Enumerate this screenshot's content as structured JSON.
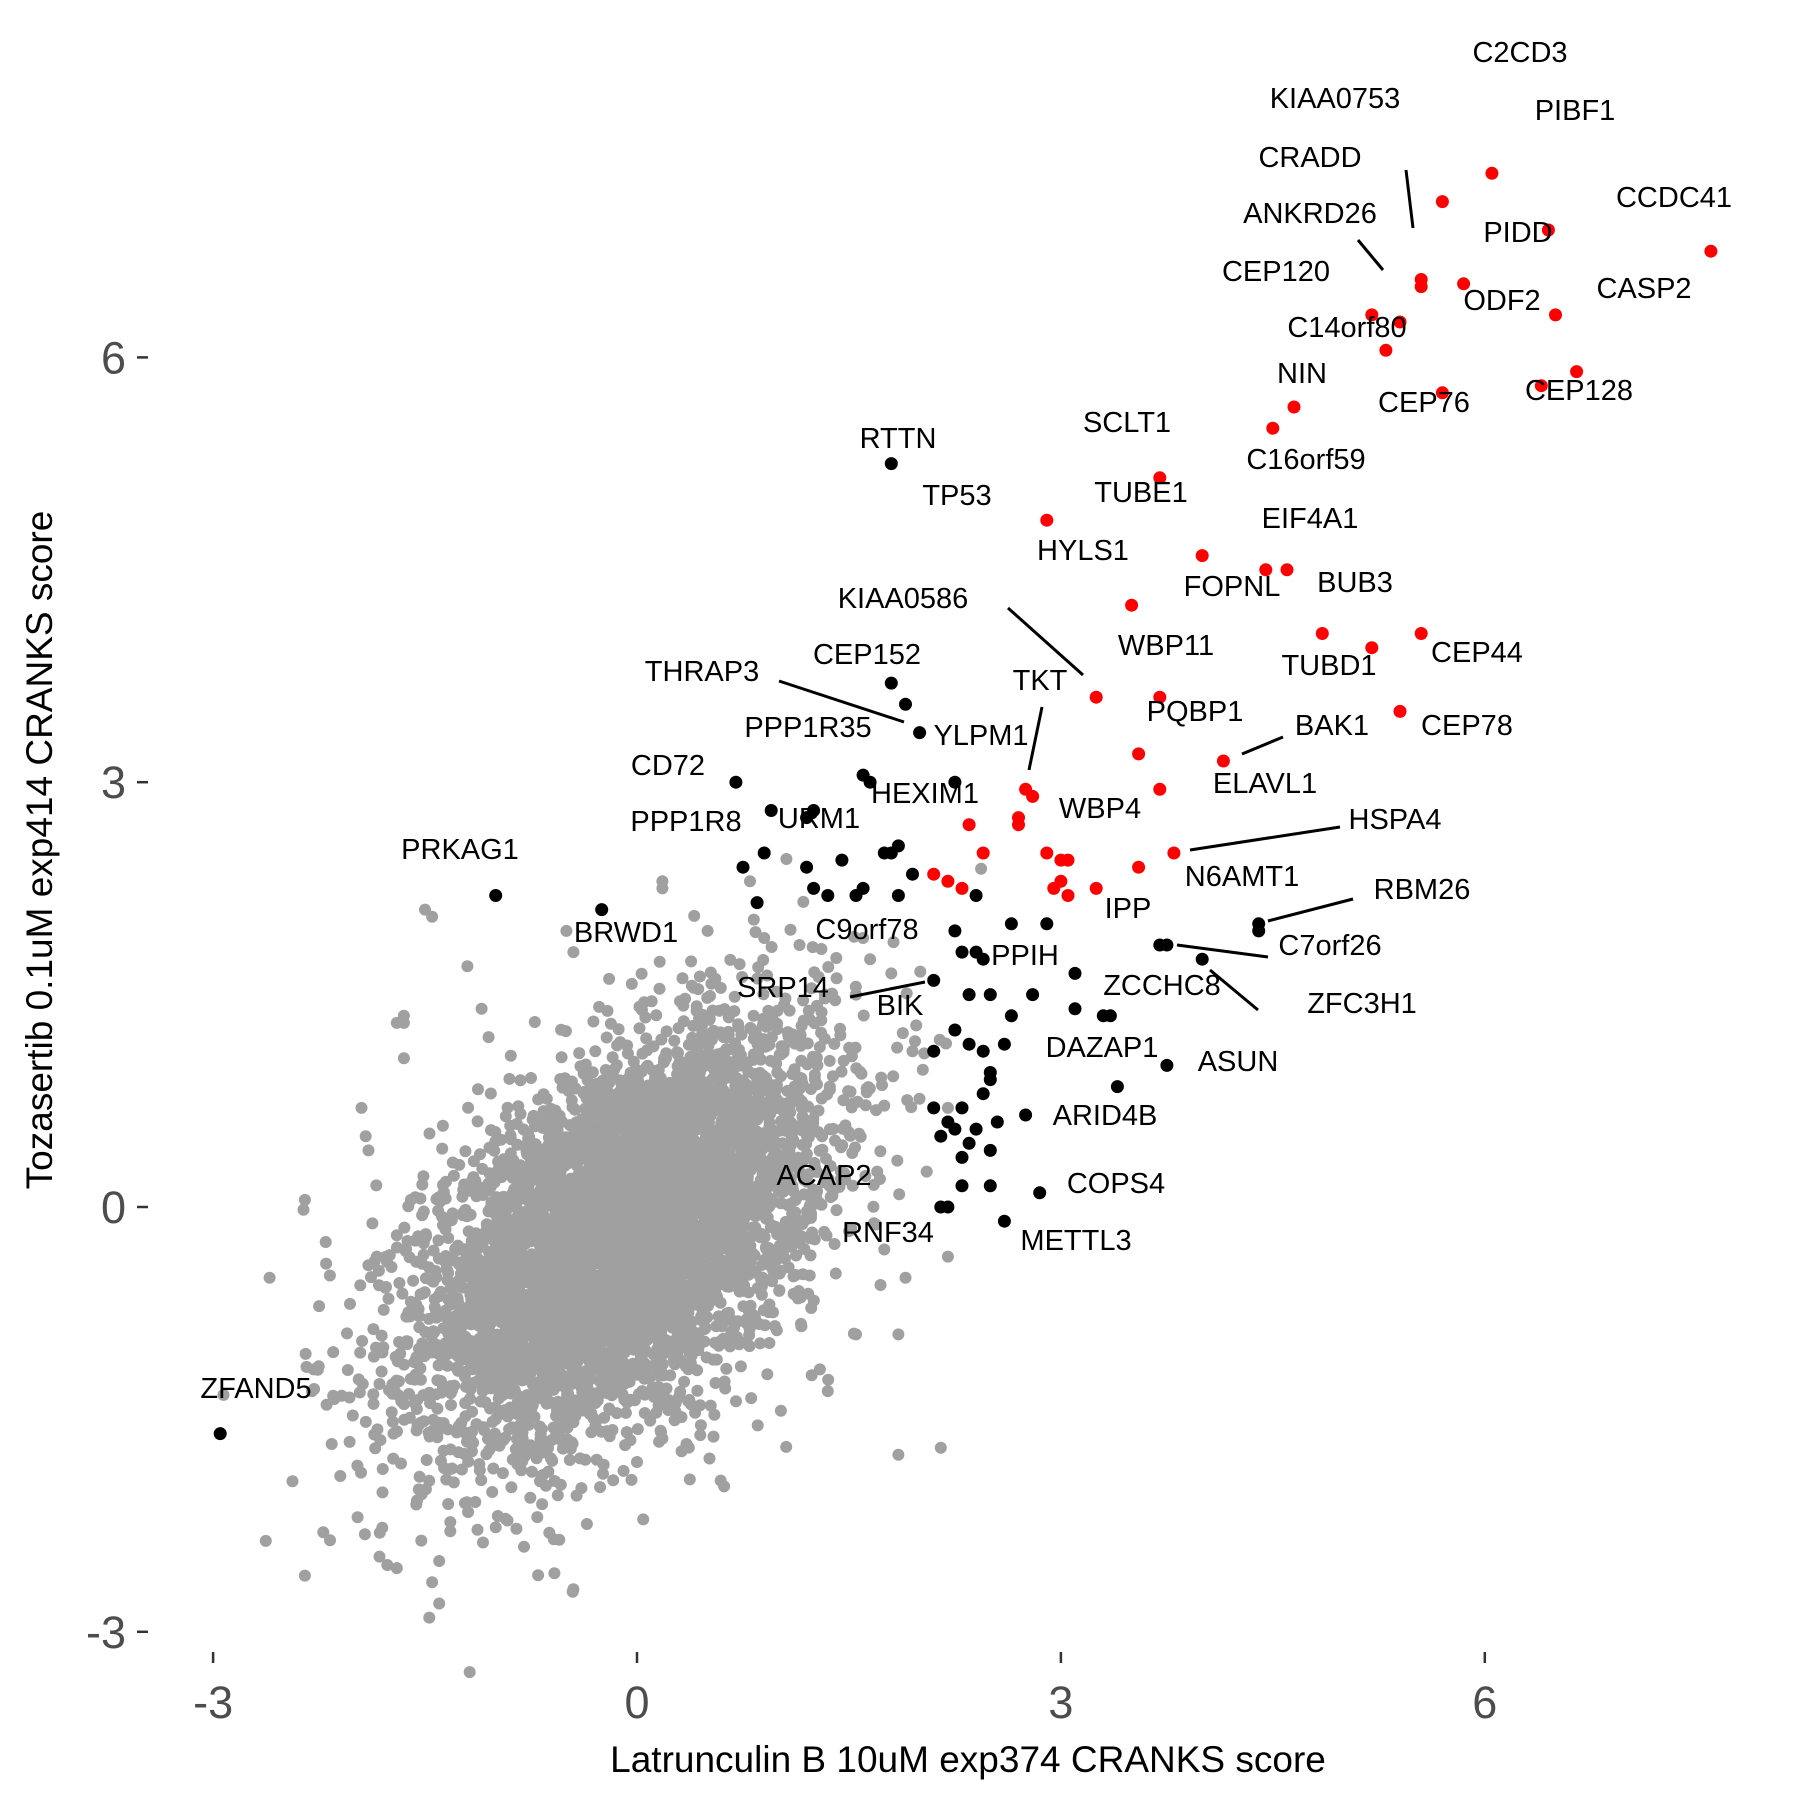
{
  "chart_data": {
    "type": "scatter",
    "xlabel": "Latrunculin B 10uM exp374 CRANKS score",
    "ylabel": "Tozasertib 0.1uM exp414 CRANKS score",
    "xlim": [
      -3.5,
      8.0
    ],
    "ylim": [
      -3.3,
      7.8
    ],
    "x_ticks": [
      -3,
      0,
      3,
      6
    ],
    "y_ticks": [
      -3,
      0,
      3,
      6
    ],
    "grid": false,
    "legend": "none",
    "colors": {
      "background": "#a0a0a0",
      "red": "#ff0000",
      "black": "#000000"
    },
    "background_points": {
      "name": "",
      "color": "#a0a0a0",
      "count": 6000,
      "distribution": {
        "x_mean": -0.1,
        "y_mean": -0.2,
        "x_sd": 0.7,
        "y_sd": 0.7,
        "correlation": 0.5
      },
      "outliers": [
        [
          -1.5,
          2.1
        ],
        [
          -1.45,
          2.05
        ],
        [
          -1.2,
          1.7
        ],
        [
          -1.1,
          1.4
        ],
        [
          -1.05,
          1.2
        ],
        [
          -1.65,
          1.3
        ],
        [
          -1.7,
          1.3
        ],
        [
          -1.65,
          1.05
        ],
        [
          -1.95,
          0.7
        ],
        [
          -1.92,
          0.5
        ],
        [
          -1.9,
          0.4
        ],
        [
          -2.2,
          -0.4
        ],
        [
          -2.6,
          -0.5
        ],
        [
          -2.25,
          -0.7
        ],
        [
          -2.3,
          -1.3
        ],
        [
          -2.1,
          -1.9
        ],
        [
          -1.8,
          -1.85
        ],
        [
          -1.82,
          -2.3
        ],
        [
          -1.7,
          -2.55
        ],
        [
          -1.4,
          -2.5
        ],
        [
          -1.45,
          -2.65
        ],
        [
          -1.4,
          -2.8
        ],
        [
          -1.47,
          -2.9
        ],
        [
          -0.7,
          -2.6
        ],
        [
          -0.45,
          -2.7
        ],
        [
          -0.55,
          -2.35
        ],
        [
          -0.8,
          -2.4
        ],
        [
          -2.35,
          0.05
        ],
        [
          -1.6,
          0.05
        ],
        [
          -1.65,
          1.35
        ],
        [
          0.18,
          2.25
        ],
        [
          0.18,
          2.3
        ],
        [
          0.8,
          2.3
        ],
        [
          1.8,
          1.65
        ],
        [
          1.65,
          1.75
        ],
        [
          1.6,
          1.9
        ],
        [
          1.95,
          1.1
        ],
        [
          1.7,
          0.25
        ],
        [
          1.85,
          -0.9
        ],
        [
          1.35,
          -1.3
        ],
        [
          2.15,
          -1.7
        ],
        [
          1.85,
          -1.75
        ],
        [
          2.2,
          -0.35
        ],
        [
          2.05,
          0.25
        ],
        [
          2.2,
          0.7
        ],
        [
          1.75,
          -0.3
        ],
        [
          1.55,
          -0.9
        ],
        [
          1.9,
          -0.5
        ],
        [
          1.15,
          1.85
        ],
        [
          0.5,
          1.95
        ],
        [
          -0.5,
          1.95
        ],
        [
          -0.45,
          1.8
        ],
        [
          0.9,
          1.9
        ],
        [
          1.55,
          1.5
        ]
      ]
    },
    "labeled_points": [
      {
        "gene": "C2CD3",
        "x": 6.05,
        "y": 7.3,
        "group": "red"
      },
      {
        "gene": "KIAA0753",
        "x": 5.7,
        "y": 7.1,
        "group": "red"
      },
      {
        "gene": "PIBF1",
        "x": 6.45,
        "y": 6.9,
        "group": "red"
      },
      {
        "gene": "CCDC41",
        "x": 7.6,
        "y": 6.75,
        "group": "red"
      },
      {
        "gene": "CRADD",
        "x": 5.55,
        "y": 6.5,
        "group": "red"
      },
      {
        "gene": "PIDD",
        "x": 5.85,
        "y": 6.52,
        "group": "red"
      },
      {
        "gene": "ANKRD26",
        "x": 5.4,
        "y": 6.25,
        "group": "red"
      },
      {
        "gene": "CEP120",
        "x": 5.2,
        "y": 6.3,
        "group": "red"
      },
      {
        "gene": "ODF2",
        "x": 6.5,
        "y": 6.3,
        "group": "red"
      },
      {
        "gene": "CASP2",
        "x": 6.65,
        "y": 5.9,
        "group": "red"
      },
      {
        "gene": "C14orf80",
        "x": 5.3,
        "y": 6.05,
        "group": "red"
      },
      {
        "gene": "CEP76",
        "x": 5.7,
        "y": 5.75,
        "group": "red"
      },
      {
        "gene": "CEP128",
        "x": 6.4,
        "y": 5.8,
        "group": "red"
      },
      {
        "gene": "NIN",
        "x": 4.65,
        "y": 5.65,
        "group": "red"
      },
      {
        "gene": "C16orf59",
        "x": 4.5,
        "y": 5.5,
        "group": "red"
      },
      {
        "gene": "SCLT1",
        "x": 3.7,
        "y": 5.15,
        "group": "red"
      },
      {
        "gene": "TP53",
        "x": 2.9,
        "y": 4.85,
        "group": "red"
      },
      {
        "gene": "TUBE1",
        "x": 4.0,
        "y": 4.6,
        "group": "red"
      },
      {
        "gene": "EIF4A1",
        "x": 4.45,
        "y": 4.5,
        "group": "red"
      },
      {
        "gene": "FOPNL",
        "x": 4.6,
        "y": 4.5,
        "group": "red"
      },
      {
        "gene": "HYLS1",
        "x": 3.5,
        "y": 4.25,
        "group": "red"
      },
      {
        "gene": "BUB3",
        "x": 4.85,
        "y": 4.05,
        "group": "red"
      },
      {
        "gene": "TUBD1",
        "x": 5.2,
        "y": 3.95,
        "group": "red"
      },
      {
        "gene": "CEP44",
        "x": 5.55,
        "y": 4.05,
        "group": "red"
      },
      {
        "gene": "KIAA0586",
        "x": 3.25,
        "y": 3.6,
        "group": "red"
      },
      {
        "gene": "WBP11",
        "x": 3.7,
        "y": 3.6,
        "group": "red"
      },
      {
        "gene": "CEP78",
        "x": 5.4,
        "y": 3.5,
        "group": "red"
      },
      {
        "gene": "PQBP1",
        "x": 3.55,
        "y": 3.2,
        "group": "red"
      },
      {
        "gene": "BAK1",
        "x": 4.15,
        "y": 3.15,
        "group": "red"
      },
      {
        "gene": "TKT",
        "x": 2.75,
        "y": 2.95,
        "group": "red"
      },
      {
        "gene": "ELAVL1",
        "x": 3.7,
        "y": 2.95,
        "group": "red"
      },
      {
        "gene": "WBP4",
        "x": 3.0,
        "y": 2.45,
        "group": "red"
      },
      {
        "gene": "HSPA4",
        "x": 3.8,
        "y": 2.5,
        "group": "red"
      },
      {
        "gene": "RTTN",
        "x": 1.8,
        "y": 5.25,
        "group": "black"
      },
      {
        "gene": "CEP152",
        "x": 1.9,
        "y": 3.55,
        "group": "black"
      },
      {
        "gene": "THRAP3",
        "x": 2.0,
        "y": 3.35,
        "group": "black"
      },
      {
        "gene": "PPP1R35",
        "x": 1.6,
        "y": 3.05,
        "group": "black"
      },
      {
        "gene": "YLPM1",
        "x": 2.25,
        "y": 3.0,
        "group": "black"
      },
      {
        "gene": "CD72",
        "x": 0.7,
        "y": 3.0,
        "group": "black"
      },
      {
        "gene": "PPP1R8",
        "x": 0.95,
        "y": 2.8,
        "group": "black"
      },
      {
        "gene": "URM1",
        "x": 1.2,
        "y": 2.75,
        "group": "black"
      },
      {
        "gene": "HEXIM1",
        "x": 1.85,
        "y": 2.55,
        "group": "black"
      },
      {
        "gene": "PRKAG1",
        "x": -1.0,
        "y": 2.2,
        "group": "black"
      },
      {
        "gene": "BRWD1",
        "x": -0.25,
        "y": 2.1,
        "group": "black"
      },
      {
        "gene": "N6AMT1",
        "x": 4.4,
        "y": 1.95,
        "group": "black"
      },
      {
        "gene": "RBM26",
        "x": 4.4,
        "y": 2.0,
        "group": "black"
      },
      {
        "gene": "IPP",
        "x": 3.7,
        "y": 1.85,
        "group": "black"
      },
      {
        "gene": "C7orf26",
        "x": 3.75,
        "y": 1.85,
        "group": "black"
      },
      {
        "gene": "ZFC3H1",
        "x": 4.0,
        "y": 1.75,
        "group": "black"
      },
      {
        "gene": "C9orf78",
        "x": 2.3,
        "y": 1.8,
        "group": "black"
      },
      {
        "gene": "PPIH",
        "x": 2.45,
        "y": 1.75,
        "group": "black"
      },
      {
        "gene": "SRP14",
        "x": 2.1,
        "y": 1.6,
        "group": "black"
      },
      {
        "gene": "ZCCHC8",
        "x": 3.3,
        "y": 1.35,
        "group": "black"
      },
      {
        "gene": "BIK",
        "x": 2.65,
        "y": 1.35,
        "group": "black"
      },
      {
        "gene": "ASUN",
        "x": 3.75,
        "y": 1.0,
        "group": "black"
      },
      {
        "gene": "DAZAP1",
        "x": 3.4,
        "y": 0.85,
        "group": "black"
      },
      {
        "gene": "ARID4B",
        "x": 2.75,
        "y": 0.65,
        "group": "black"
      },
      {
        "gene": "COPS4",
        "x": 2.85,
        "y": 0.1,
        "group": "black"
      },
      {
        "gene": "ACAP2",
        "x": 2.2,
        "y": 0.0,
        "group": "black"
      },
      {
        "gene": "RNF34",
        "x": 2.15,
        "y": 0.0,
        "group": "black"
      },
      {
        "gene": "METTL3",
        "x": 2.6,
        "y": -0.1,
        "group": "black"
      },
      {
        "gene": "ZFAND5",
        "x": -2.95,
        "y": -1.6,
        "group": "black"
      }
    ],
    "unlabeled_red_points": [
      [
        5.55,
        6.55
      ],
      [
        2.7,
        2.7
      ],
      [
        2.35,
        2.7
      ],
      [
        2.7,
        2.75
      ],
      [
        2.8,
        2.9
      ],
      [
        2.45,
        2.5
      ],
      [
        2.9,
        2.5
      ],
      [
        3.05,
        2.45
      ],
      [
        3.55,
        2.4
      ],
      [
        2.1,
        2.35
      ],
      [
        2.2,
        2.3
      ],
      [
        2.3,
        2.25
      ],
      [
        3.0,
        2.3
      ],
      [
        3.05,
        2.2
      ],
      [
        2.95,
        2.25
      ],
      [
        3.25,
        2.25
      ]
    ],
    "unlabeled_black_points": [
      [
        1.8,
        3.7
      ],
      [
        1.65,
        3.0
      ],
      [
        1.25,
        2.8
      ],
      [
        0.9,
        2.5
      ],
      [
        1.2,
        2.4
      ],
      [
        0.75,
        2.4
      ],
      [
        1.45,
        2.45
      ],
      [
        1.75,
        2.5
      ],
      [
        1.8,
        2.5
      ],
      [
        1.95,
        2.35
      ],
      [
        1.25,
        2.25
      ],
      [
        1.35,
        2.2
      ],
      [
        0.85,
        2.15
      ],
      [
        1.55,
        2.2
      ],
      [
        1.6,
        2.25
      ],
      [
        1.85,
        2.2
      ],
      [
        2.4,
        2.2
      ],
      [
        2.25,
        1.95
      ],
      [
        2.65,
        2.0
      ],
      [
        2.9,
        2.0
      ],
      [
        2.4,
        1.8
      ],
      [
        2.5,
        1.5
      ],
      [
        2.35,
        1.5
      ],
      [
        2.8,
        1.5
      ],
      [
        3.1,
        1.65
      ],
      [
        3.1,
        1.4
      ],
      [
        3.35,
        1.35
      ],
      [
        2.25,
        1.25
      ],
      [
        2.35,
        1.15
      ],
      [
        2.1,
        1.1
      ],
      [
        2.45,
        1.1
      ],
      [
        2.6,
        1.15
      ],
      [
        2.5,
        0.95
      ],
      [
        2.5,
        0.9
      ],
      [
        2.45,
        0.8
      ],
      [
        2.1,
        0.7
      ],
      [
        2.3,
        0.7
      ],
      [
        2.2,
        0.6
      ],
      [
        2.25,
        0.55
      ],
      [
        2.15,
        0.5
      ],
      [
        2.4,
        0.55
      ],
      [
        2.55,
        0.6
      ],
      [
        2.35,
        0.45
      ],
      [
        2.3,
        0.35
      ],
      [
        2.5,
        0.4
      ],
      [
        2.3,
        0.15
      ],
      [
        2.5,
        0.15
      ]
    ]
  }
}
